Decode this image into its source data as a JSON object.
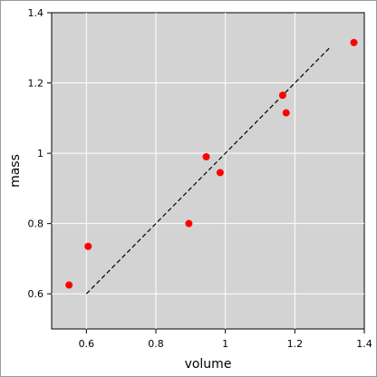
{
  "chart_data": {
    "type": "scatter",
    "title": "",
    "xlabel": "volume",
    "ylabel": "mass",
    "xlim": [
      0.5,
      1.4
    ],
    "ylim": [
      0.5,
      1.4
    ],
    "x_ticks": [
      0.6,
      0.8,
      1.0,
      1.2,
      1.4
    ],
    "x_tick_labels": [
      "0.6",
      "0.8",
      "1",
      "1.2",
      "1.4"
    ],
    "y_ticks": [
      0.6,
      0.8,
      1.0,
      1.2,
      1.4
    ],
    "y_tick_labels": [
      "0.6",
      "0.8",
      "1",
      "1.2",
      "1.4"
    ],
    "grid": true,
    "background_color": "#d3d3d3",
    "grid_color": "#ffffff",
    "points": {
      "color": "#ff0000",
      "x": [
        0.55,
        0.605,
        0.895,
        0.945,
        0.985,
        1.165,
        1.175,
        1.37
      ],
      "y": [
        0.625,
        0.735,
        0.8,
        0.99,
        0.945,
        1.165,
        1.115,
        1.315
      ]
    },
    "fit_line": {
      "style": "dashed",
      "color": "#000000",
      "x": [
        0.6,
        1.3
      ],
      "y": [
        0.6,
        1.3
      ]
    }
  }
}
